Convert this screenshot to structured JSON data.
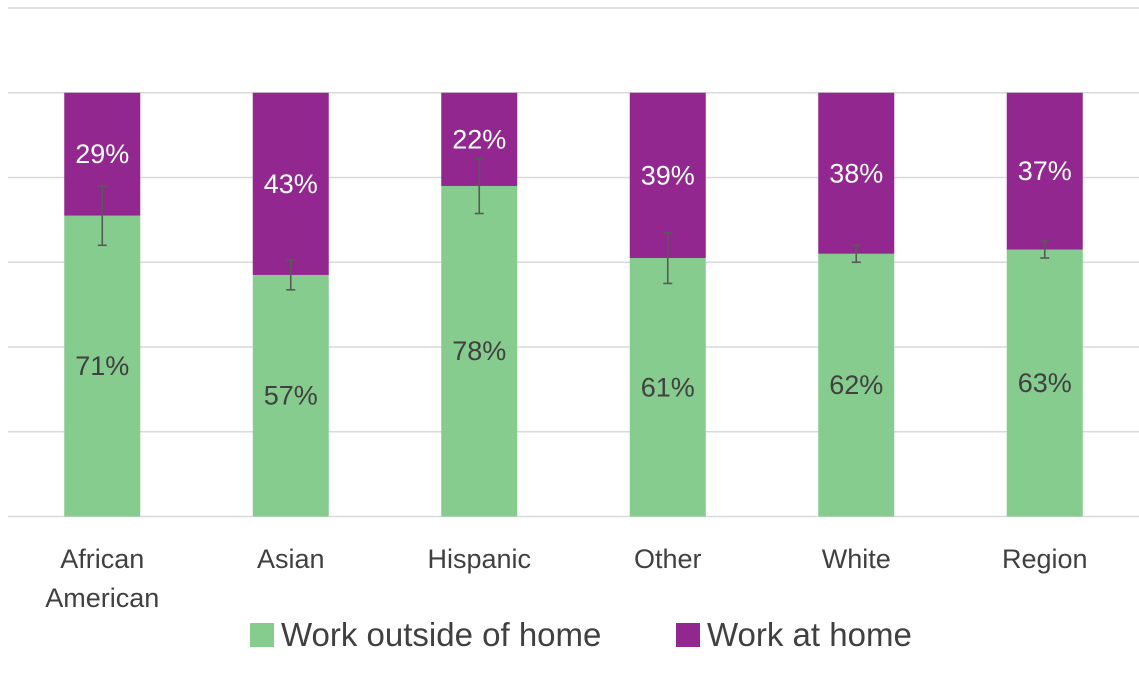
{
  "chart_data": {
    "type": "bar",
    "stacked": true,
    "percent_scale": true,
    "categories": [
      "African American",
      "Asian",
      "Hispanic",
      "Other",
      "White",
      "Region"
    ],
    "series": [
      {
        "name": "Work outside of home",
        "color": "#86CC8E",
        "values": [
          71,
          57,
          78,
          61,
          62,
          63
        ],
        "labels": [
          "71%",
          "57%",
          "78%",
          "61%",
          "62%",
          "63%"
        ],
        "error_bars": [
          7,
          3.5,
          6.5,
          6,
          2,
          2
        ]
      },
      {
        "name": "Work at home",
        "color": "#92278F",
        "values": [
          29,
          43,
          22,
          39,
          38,
          37
        ],
        "labels": [
          "29%",
          "43%",
          "22%",
          "39%",
          "38%",
          "37%"
        ]
      }
    ],
    "ylim": [
      0,
      120
    ],
    "grid": true,
    "legend_position": "bottom"
  }
}
